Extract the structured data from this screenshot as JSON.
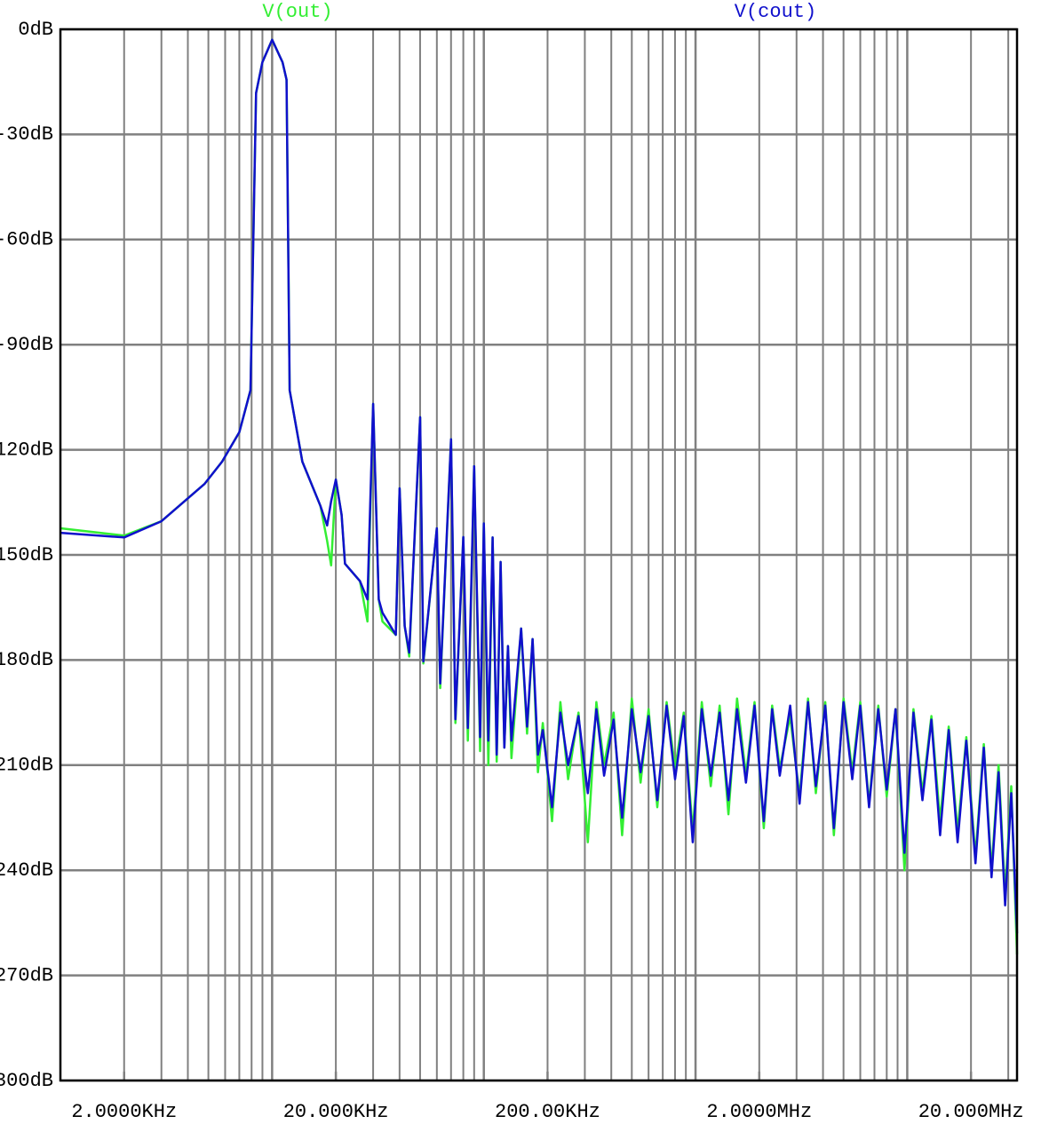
{
  "chart_data": {
    "type": "line",
    "x": [
      1000,
      2000,
      3000,
      4800,
      5800,
      7000,
      7900,
      8400,
      9000,
      10000,
      11200,
      11700,
      12100,
      13900,
      16900,
      18200,
      19000,
      20000,
      21300,
      22100,
      26000,
      28200,
      30000,
      31900,
      33200,
      38400,
      40000,
      42300,
      44400,
      50000,
      51800,
      60000,
      62200,
      70000,
      73400,
      80000,
      84000,
      90000,
      96000,
      100000,
      105000,
      110000,
      115000,
      120000,
      125000,
      130000,
      135000,
      150000,
      160000,
      170000,
      180000,
      190000,
      210000,
      230000,
      250000,
      280000,
      310000,
      340000,
      370000,
      410000,
      450000,
      500000,
      550000,
      600000,
      660000,
      730000,
      800000,
      880000,
      970000,
      1070000,
      1180000,
      1300000,
      1430000,
      1570000,
      1730000,
      1900000,
      2100000,
      2300000,
      2500000,
      2800000,
      3100000,
      3400000,
      3700000,
      4100000,
      4500000,
      5000000,
      5500000,
      6000000,
      6600000,
      7300000,
      8000000,
      8800000,
      9700000,
      10700000,
      11800000,
      13000000,
      14300000,
      15700000,
      17300000,
      19000000,
      21000000,
      23000000,
      25000000,
      27000000,
      29000000,
      31000000,
      33000000
    ],
    "series": [
      {
        "name": "V(out)",
        "color": "#33ee33",
        "values": [
          -142.4,
          -144.5,
          -140.4,
          -129.7,
          -123.4,
          -115,
          -103,
          -18.2,
          -9.4,
          -3,
          -9.4,
          -14.4,
          -103,
          -123.4,
          -136,
          -146,
          -153,
          -128.5,
          -138.6,
          -152.5,
          -157.5,
          -169,
          -106.9,
          -162.7,
          -169,
          -172.8,
          -131,
          -170.3,
          -179,
          -110.7,
          -181,
          -142.4,
          -188,
          -117,
          -198,
          -144.9,
          -203,
          -124.7,
          -206,
          -141,
          -210,
          -145,
          -209,
          -152,
          -205,
          -176,
          -208,
          -171,
          -201,
          -174,
          -212,
          -198,
          -226,
          -192,
          -214,
          -195,
          -232,
          -192,
          -210,
          -195,
          -230,
          -191,
          -215,
          -194,
          -222,
          -192,
          -211,
          -195,
          -229,
          -192,
          -216,
          -193,
          -224,
          -191,
          -213,
          -192,
          -228,
          -193,
          -211,
          -196,
          -219,
          -191,
          -218,
          -192,
          -230,
          -191,
          -212,
          -192,
          -221,
          -193,
          -219,
          -194,
          -240,
          -194,
          -218,
          -196,
          -226,
          -199,
          -229,
          -202,
          -236,
          -204,
          -240,
          -210,
          -247,
          -216,
          -264
        ]
      },
      {
        "name": "V(cout)",
        "color": "#1010cc",
        "values": [
          -143.7,
          -145,
          -140.4,
          -129.7,
          -123.4,
          -115,
          -103,
          -18.2,
          -9.4,
          -3,
          -9.4,
          -14.4,
          -103,
          -123.4,
          -136,
          -141.6,
          -134.7,
          -128.5,
          -138.6,
          -152.5,
          -157.5,
          -162.7,
          -106.9,
          -162.7,
          -166.5,
          -172.8,
          -131,
          -170.3,
          -177.9,
          -110.7,
          -180.4,
          -142.4,
          -186.7,
          -117,
          -196.9,
          -144.9,
          -199.4,
          -124.7,
          -202,
          -141,
          -203,
          -145,
          -207,
          -152,
          -205,
          -176,
          -203,
          -171,
          -199,
          -174,
          -207,
          -200,
          -222,
          -195,
          -210,
          -196,
          -218,
          -194,
          -213,
          -197,
          -225,
          -194,
          -212,
          -196,
          -220,
          -193,
          -214,
          -196,
          -232,
          -194,
          -213,
          -195,
          -220,
          -194,
          -215,
          -193,
          -226,
          -194,
          -213,
          -193,
          -221,
          -192,
          -216,
          -193,
          -228,
          -192,
          -214,
          -193,
          -222,
          -194,
          -217,
          -194,
          -235,
          -195,
          -220,
          -197,
          -230,
          -200,
          -232,
          -203,
          -238,
          -205,
          -242,
          -212,
          -250,
          -218,
          -258
        ]
      }
    ],
    "xlim": [
      1000,
      33000000
    ],
    "log_x": true,
    "xticks": [
      {
        "value": 2000,
        "label": "2.0000KHz"
      },
      {
        "value": 20000,
        "label": "20.000KHz"
      },
      {
        "value": 200000,
        "label": "200.00KHz"
      },
      {
        "value": 2000000,
        "label": "2.0000MHz"
      },
      {
        "value": 20000000,
        "label": "20.000MHz"
      }
    ],
    "ylim": [
      -300,
      0
    ],
    "yticks": [
      {
        "value": 0,
        "label": "0dB"
      },
      {
        "value": -30,
        "label": "-30dB"
      },
      {
        "value": -60,
        "label": "-60dB"
      },
      {
        "value": -90,
        "label": "-90dB"
      },
      {
        "value": -120,
        "label": "-120dB"
      },
      {
        "value": -150,
        "label": "-150dB"
      },
      {
        "value": -180,
        "label": "-180dB"
      },
      {
        "value": -210,
        "label": "-210dB"
      },
      {
        "value": -240,
        "label": "-240dB"
      },
      {
        "value": -270,
        "label": "-270dB"
      },
      {
        "value": -300,
        "label": "-300dB"
      }
    ],
    "grid": true
  }
}
